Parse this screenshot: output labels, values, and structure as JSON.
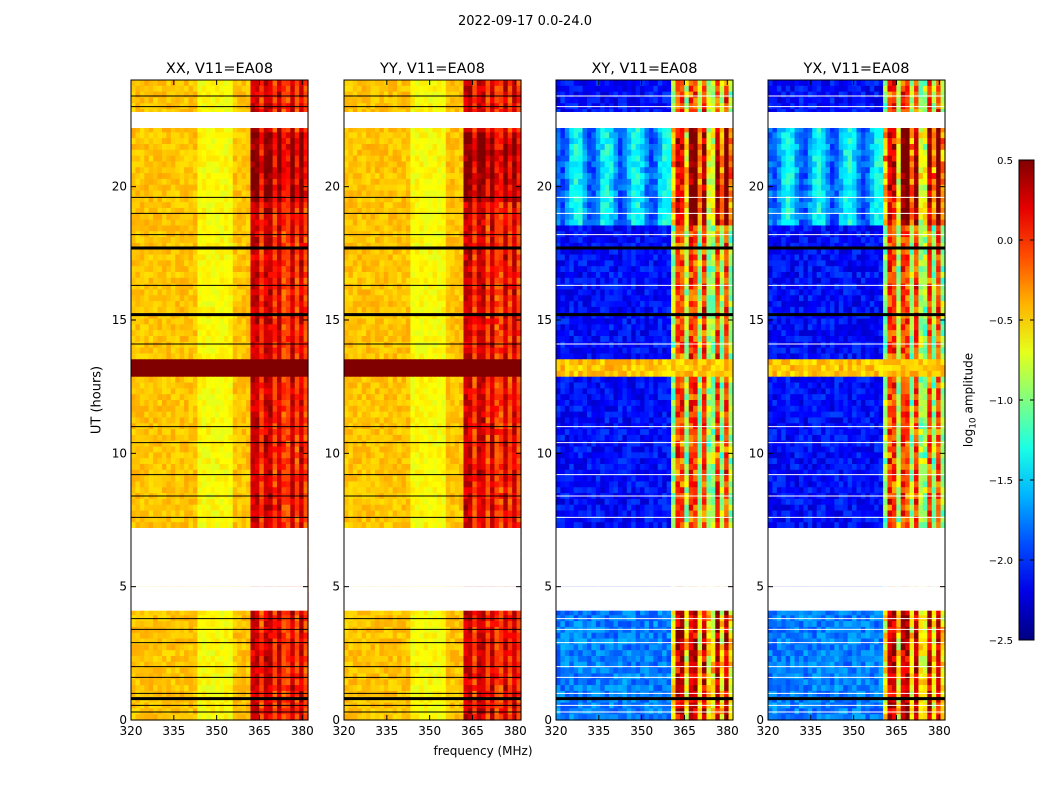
{
  "chart_data": {
    "type": "heatmap",
    "suptitle": "2022-09-17 0.0-24.0",
    "xlabel": "frequency (MHz)",
    "ylabel": "UT (hours)",
    "colorbar_label_main": "log",
    "colorbar_label_sub": "10",
    "colorbar_label_rest": " amplitude",
    "colormap": "jet",
    "colorbar_range": [
      -2.5,
      0.5
    ],
    "colorbar_ticks": [
      "0.5",
      "0.0",
      "−0.5",
      "−1.0",
      "−1.5",
      "−2.0",
      "−2.5"
    ],
    "colorbar_tick_values": [
      0.5,
      0.0,
      -0.5,
      -1.0,
      -1.5,
      -2.0,
      -2.5
    ],
    "xlim": [
      320,
      382
    ],
    "ylim": [
      0,
      24
    ],
    "x_ticks": [
      320,
      335,
      350,
      365,
      380
    ],
    "y_ticks": [
      0,
      5,
      10,
      15,
      20
    ],
    "panels": [
      {
        "title": "XX, V11=EA08",
        "kind": "parallel",
        "base_level": -0.45
      },
      {
        "title": "YY, V11=EA08",
        "kind": "parallel",
        "base_level": -0.45
      },
      {
        "title": "XY, V11=EA08",
        "kind": "cross",
        "base_level": -2.1
      },
      {
        "title": "YX, V11=EA08",
        "kind": "cross",
        "base_level": -2.1
      }
    ],
    "rfi_channels_mhz": [
      362,
      364,
      368,
      372,
      376,
      380
    ],
    "white_gaps_ut": [
      [
        4.5,
        5.0
      ],
      [
        4.1,
        4.5
      ],
      [
        5.0,
        7.2
      ],
      [
        22.2,
        22.8
      ]
    ],
    "flagged_rows_ut": [
      0.8,
      15.2,
      17.7
    ],
    "saturated_band_ut": [
      12.9,
      13.6
    ]
  }
}
